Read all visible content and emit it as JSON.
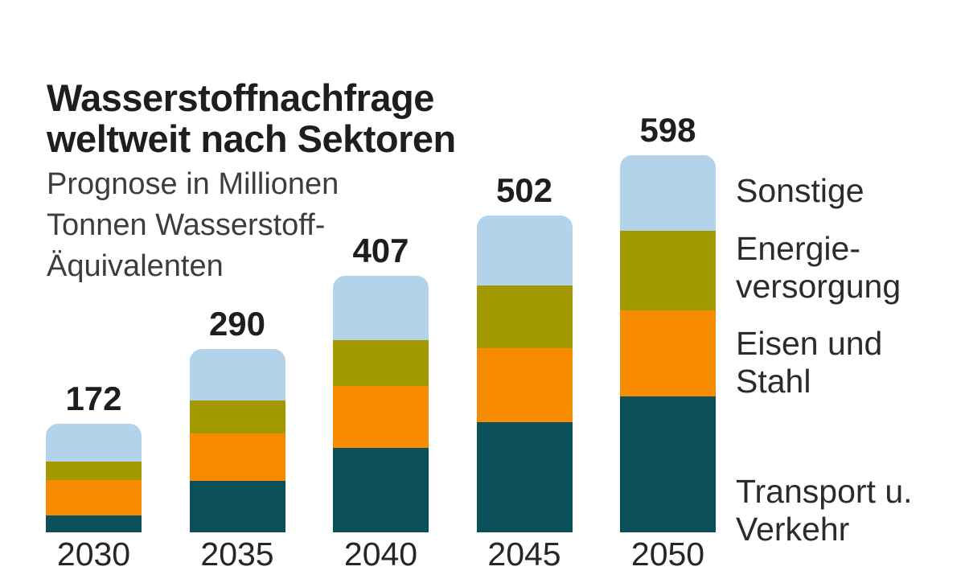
{
  "header": {
    "title": "Wasserstoffnachfrage\nweltweit nach Sektoren",
    "subtitle": "Prognose in Millionen\nTonnen Wasserstoff-\nÄquivalenten"
  },
  "legend": {
    "sonstige": "Sonstige",
    "energieversorgung": "Energie-\nversorgung",
    "eisen_stahl": "Eisen und\nStahl",
    "transport_verkehr": "Transport u.\nVerkehr"
  },
  "chart_data": {
    "type": "bar",
    "stacked": true,
    "title": "Wasserstoffnachfrage weltweit nach Sektoren",
    "subtitle": "Prognose in Millionen Tonnen Wasserstoff-Äquivalenten",
    "unit": "Millionen Tonnen Wasserstoff-Äquivalente",
    "categories": [
      "2030",
      "2035",
      "2040",
      "2045",
      "2050"
    ],
    "series": [
      {
        "name": "Transport u. Verkehr",
        "color": "#0b4f5a",
        "values": [
          27,
          81,
          134,
          174,
          215
        ]
      },
      {
        "name": "Eisen und Stahl",
        "color": "#f78b00",
        "values": [
          56,
          76,
          98,
          118,
          137
        ]
      },
      {
        "name": "Energieversorgung",
        "color": "#a39a02",
        "values": [
          29,
          52,
          73,
          99,
          126
        ]
      },
      {
        "name": "Sonstige",
        "color": "#b2d3e9",
        "values": [
          60,
          81,
          102,
          111,
          120
        ]
      }
    ],
    "totals": [
      172,
      290,
      407,
      502,
      598
    ],
    "data_labels": "totals above bars",
    "legend_position": "right",
    "grid": false,
    "axes": {
      "y_axis_visible": false,
      "x_tick_labels": [
        "2030",
        "2035",
        "2040",
        "2045",
        "2050"
      ]
    }
  }
}
